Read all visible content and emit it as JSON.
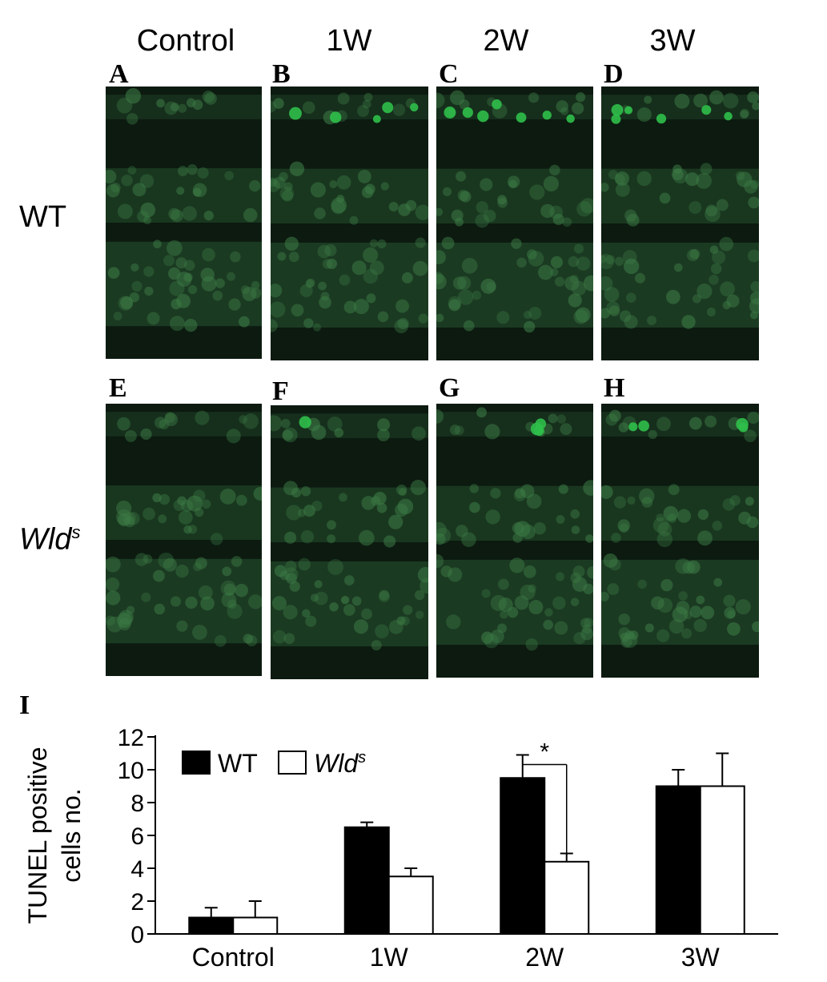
{
  "figure": {
    "column_labels": [
      "Control",
      "1W",
      "2W",
      "3W"
    ],
    "row_labels": {
      "wt": "WT",
      "wlds_base": "Wld",
      "wlds_sup": "s"
    },
    "panel_letters": [
      "A",
      "B",
      "C",
      "D",
      "E",
      "F",
      "G",
      "H"
    ],
    "chart_panel_letter": "I",
    "colors": {
      "wt_bar": "#000000",
      "wlds_bar": "#ffffff",
      "cell_stain": "#2fbf4a",
      "tissue_bg": "#0c1a10"
    }
  },
  "chart_data": {
    "type": "bar",
    "categories": [
      "Control",
      "1W",
      "2W",
      "3W"
    ],
    "series": [
      {
        "name": "WT",
        "values": [
          1.0,
          6.5,
          9.5,
          9.0
        ],
        "errors": [
          0.6,
          0.3,
          1.4,
          1.0
        ]
      },
      {
        "name": "Wld",
        "name_superscript": "s",
        "values": [
          1.0,
          3.5,
          4.4,
          9.0
        ],
        "errors": [
          1.0,
          0.5,
          0.5,
          2.0
        ]
      }
    ],
    "ylabel_line1": "TUNEL positive",
    "ylabel_line2": "cells no.",
    "xlabel": "",
    "ylim": [
      0,
      12
    ],
    "yticks": [
      0,
      2,
      4,
      6,
      8,
      10,
      12
    ],
    "grid": false,
    "legend_position": "top-left",
    "significance": {
      "category": "2W",
      "label": "*"
    }
  }
}
